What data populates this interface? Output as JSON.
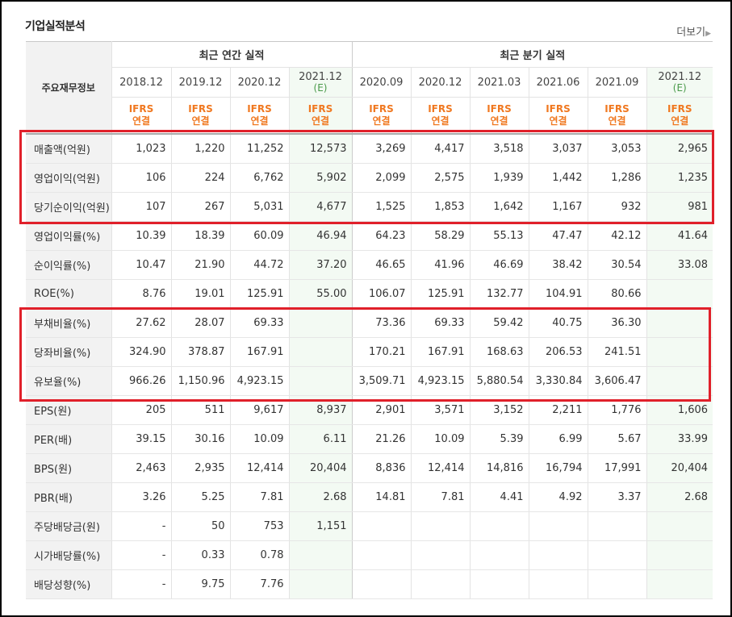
{
  "title": "기업실적분석",
  "more_label": "더보기",
  "header": {
    "row_label": "주요재무정보",
    "annual_group": "최근 연간 실적",
    "quarter_group": "최근 분기 실적",
    "periods": [
      {
        "date": "2018.12",
        "est": ""
      },
      {
        "date": "2019.12",
        "est": ""
      },
      {
        "date": "2020.12",
        "est": ""
      },
      {
        "date": "2021.12",
        "est": "(E)"
      },
      {
        "date": "2020.09",
        "est": ""
      },
      {
        "date": "2020.12",
        "est": ""
      },
      {
        "date": "2021.03",
        "est": ""
      },
      {
        "date": "2021.06",
        "est": ""
      },
      {
        "date": "2021.09",
        "est": ""
      },
      {
        "date": "2021.12",
        "est": "(E)"
      }
    ],
    "ifrs_line1": "IFRS",
    "ifrs_line2": "연결"
  },
  "rows": [
    {
      "label": "매출액(억원)",
      "values": [
        "1,023",
        "1,220",
        "11,252",
        "12,573",
        "3,269",
        "4,417",
        "3,518",
        "3,037",
        "3,053",
        "2,965"
      ]
    },
    {
      "label": "영업이익(억원)",
      "values": [
        "106",
        "224",
        "6,762",
        "5,902",
        "2,099",
        "2,575",
        "1,939",
        "1,442",
        "1,286",
        "1,235"
      ]
    },
    {
      "label": "당기순이익(억원)",
      "values": [
        "107",
        "267",
        "5,031",
        "4,677",
        "1,525",
        "1,853",
        "1,642",
        "1,167",
        "932",
        "981"
      ]
    },
    {
      "label": "영업이익률(%)",
      "values": [
        "10.39",
        "18.39",
        "60.09",
        "46.94",
        "64.23",
        "58.29",
        "55.13",
        "47.47",
        "42.12",
        "41.64"
      ]
    },
    {
      "label": "순이익률(%)",
      "values": [
        "10.47",
        "21.90",
        "44.72",
        "37.20",
        "46.65",
        "41.96",
        "46.69",
        "38.42",
        "30.54",
        "33.08"
      ]
    },
    {
      "label": "ROE(%)",
      "values": [
        "8.76",
        "19.01",
        "125.91",
        "55.00",
        "106.07",
        "125.91",
        "132.77",
        "104.91",
        "80.66",
        ""
      ]
    },
    {
      "label": "부채비율(%)",
      "values": [
        "27.62",
        "28.07",
        "69.33",
        "",
        "73.36",
        "69.33",
        "59.42",
        "40.75",
        "36.30",
        ""
      ]
    },
    {
      "label": "당좌비율(%)",
      "values": [
        "324.90",
        "378.87",
        "167.91",
        "",
        "170.21",
        "167.91",
        "168.63",
        "206.53",
        "241.51",
        ""
      ]
    },
    {
      "label": "유보율(%)",
      "values": [
        "966.26",
        "1,150.96",
        "4,923.15",
        "",
        "3,509.71",
        "4,923.15",
        "5,880.54",
        "3,330.84",
        "3,606.47",
        ""
      ]
    },
    {
      "label": "EPS(원)",
      "values": [
        "205",
        "511",
        "9,617",
        "8,937",
        "2,901",
        "3,571",
        "3,152",
        "2,211",
        "1,776",
        "1,606"
      ]
    },
    {
      "label": "PER(배)",
      "values": [
        "39.15",
        "30.16",
        "10.09",
        "6.11",
        "21.26",
        "10.09",
        "5.39",
        "6.99",
        "5.67",
        "33.99"
      ]
    },
    {
      "label": "BPS(원)",
      "values": [
        "2,463",
        "2,935",
        "12,414",
        "20,404",
        "8,836",
        "12,414",
        "14,816",
        "16,794",
        "17,991",
        "20,404"
      ]
    },
    {
      "label": "PBR(배)",
      "values": [
        "3.26",
        "5.25",
        "7.81",
        "2.68",
        "14.81",
        "7.81",
        "4.41",
        "4.92",
        "3.37",
        "2.68"
      ]
    },
    {
      "label": "주당배당금(원)",
      "values": [
        "-",
        "50",
        "753",
        "1,151",
        "",
        "",
        "",
        "",
        "",
        ""
      ]
    },
    {
      "label": "시가배당률(%)",
      "values": [
        "-",
        "0.33",
        "0.78",
        "",
        "",
        "",
        "",
        "",
        "",
        ""
      ]
    },
    {
      "label": "배당성향(%)",
      "values": [
        "-",
        "9.75",
        "7.76",
        "",
        "",
        "",
        "",
        "",
        "",
        ""
      ]
    }
  ],
  "highlight_color": "#e0202a",
  "ifrs_color": "#f07820",
  "estimate_color": "#4a9a4a"
}
